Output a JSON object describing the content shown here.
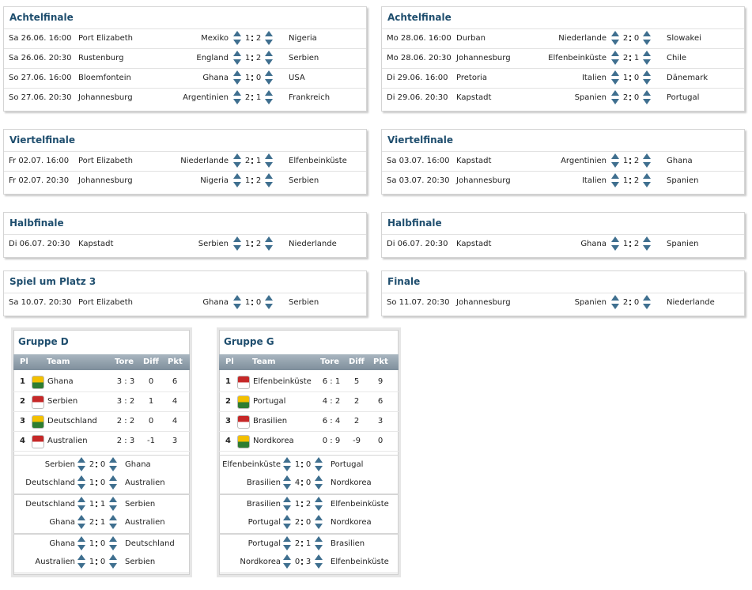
{
  "rounds": [
    {
      "title": "Achtelfinale",
      "matches": [
        {
          "date": "Sa 26.06. 16:00",
          "venue": "Port Elizabeth",
          "home": "Mexiko",
          "home_goals": 1,
          "away_goals": 2,
          "away": "Nigeria"
        },
        {
          "date": "Sa 26.06. 20:30",
          "venue": "Rustenburg",
          "home": "England",
          "home_goals": 1,
          "away_goals": 2,
          "away": "Serbien"
        },
        {
          "date": "So 27.06. 16:00",
          "venue": "Bloemfontein",
          "home": "Ghana",
          "home_goals": 1,
          "away_goals": 0,
          "away": "USA"
        },
        {
          "date": "So 27.06. 20:30",
          "venue": "Johannesburg",
          "home": "Argentinien",
          "home_goals": 2,
          "away_goals": 1,
          "away": "Frankreich"
        }
      ]
    },
    {
      "title": "Achtelfinale",
      "matches": [
        {
          "date": "Mo 28.06. 16:00",
          "venue": "Durban",
          "home": "Niederlande",
          "home_goals": 2,
          "away_goals": 0,
          "away": "Slowakei"
        },
        {
          "date": "Mo 28.06. 20:30",
          "venue": "Johannesburg",
          "home": "Elfenbeinküste",
          "home_goals": 2,
          "away_goals": 1,
          "away": "Chile"
        },
        {
          "date": "Di 29.06. 16:00",
          "venue": "Pretoria",
          "home": "Italien",
          "home_goals": 1,
          "away_goals": 0,
          "away": "Dänemark"
        },
        {
          "date": "Di 29.06. 20:30",
          "venue": "Kapstadt",
          "home": "Spanien",
          "home_goals": 2,
          "away_goals": 0,
          "away": "Portugal"
        }
      ]
    },
    {
      "title": "Viertelfinale",
      "matches": [
        {
          "date": "Fr 02.07. 16:00",
          "venue": "Port Elizabeth",
          "home": "Niederlande",
          "home_goals": 2,
          "away_goals": 1,
          "away": "Elfenbeinküste"
        },
        {
          "date": "Fr 02.07. 20:30",
          "venue": "Johannesburg",
          "home": "Nigeria",
          "home_goals": 1,
          "away_goals": 2,
          "away": "Serbien"
        }
      ]
    },
    {
      "title": "Viertelfinale",
      "matches": [
        {
          "date": "Sa 03.07. 16:00",
          "venue": "Kapstadt",
          "home": "Argentinien",
          "home_goals": 1,
          "away_goals": 2,
          "away": "Ghana"
        },
        {
          "date": "Sa 03.07. 20:30",
          "venue": "Johannesburg",
          "home": "Italien",
          "home_goals": 1,
          "away_goals": 2,
          "away": "Spanien"
        }
      ]
    },
    {
      "title": "Halbfinale",
      "matches": [
        {
          "date": "Di 06.07. 20:30",
          "venue": "Kapstadt",
          "home": "Serbien",
          "home_goals": 1,
          "away_goals": 2,
          "away": "Niederlande"
        }
      ]
    },
    {
      "title": "Halbfinale",
      "matches": [
        {
          "date": "Di 06.07. 20:30",
          "venue": "Kapstadt",
          "home": "Ghana",
          "home_goals": 1,
          "away_goals": 2,
          "away": "Spanien"
        }
      ]
    },
    {
      "title": "Spiel um Platz 3",
      "matches": [
        {
          "date": "Sa 10.07. 20:30",
          "venue": "Port Elizabeth",
          "home": "Ghana",
          "home_goals": 1,
          "away_goals": 0,
          "away": "Serbien"
        }
      ]
    },
    {
      "title": "Finale",
      "matches": [
        {
          "date": "So 11.07. 20:30",
          "venue": "Johannesburg",
          "home": "Spanien",
          "home_goals": 2,
          "away_goals": 0,
          "away": "Niederlande"
        }
      ]
    }
  ],
  "groups": [
    {
      "title": "Gruppe D",
      "headers": [
        "Pl",
        "Team",
        "Tore",
        "Diff",
        "Pkt"
      ],
      "rows": [
        {
          "pl": 1,
          "team": "Ghana",
          "tore": "3 : 3",
          "diff": 0,
          "pkt": 6
        },
        {
          "pl": 2,
          "team": "Serbien",
          "tore": "3 : 2",
          "diff": 1,
          "pkt": 4
        },
        {
          "pl": 3,
          "team": "Deutschland",
          "tore": "2 : 2",
          "diff": 0,
          "pkt": 4
        },
        {
          "pl": 4,
          "team": "Australien",
          "tore": "2 : 3",
          "diff": -1,
          "pkt": 3
        }
      ],
      "matches": [
        {
          "home": "Serbien",
          "home_goals": 2,
          "away_goals": 0,
          "away": "Ghana"
        },
        {
          "home": "Deutschland",
          "home_goals": 1,
          "away_goals": 0,
          "away": "Australien"
        },
        {
          "home": "Deutschland",
          "home_goals": 1,
          "away_goals": 1,
          "away": "Serbien"
        },
        {
          "home": "Ghana",
          "home_goals": 2,
          "away_goals": 1,
          "away": "Australien"
        },
        {
          "home": "Ghana",
          "home_goals": 1,
          "away_goals": 0,
          "away": "Deutschland"
        },
        {
          "home": "Australien",
          "home_goals": 1,
          "away_goals": 0,
          "away": "Serbien"
        }
      ]
    },
    {
      "title": "Gruppe G",
      "headers": [
        "Pl",
        "Team",
        "Tore",
        "Diff",
        "Pkt"
      ],
      "rows": [
        {
          "pl": 1,
          "team": "Elfenbeinküste",
          "tore": "6 : 1",
          "diff": 5,
          "pkt": 9
        },
        {
          "pl": 2,
          "team": "Portugal",
          "tore": "4 : 2",
          "diff": 2,
          "pkt": 6
        },
        {
          "pl": 3,
          "team": "Brasilien",
          "tore": "6 : 4",
          "diff": 2,
          "pkt": 3
        },
        {
          "pl": 4,
          "team": "Nordkorea",
          "tore": "0 : 9",
          "diff": -9,
          "pkt": 0
        }
      ],
      "matches": [
        {
          "home": "Elfenbeinküste",
          "home_goals": 1,
          "away_goals": 0,
          "away": "Portugal"
        },
        {
          "home": "Brasilien",
          "home_goals": 4,
          "away_goals": 0,
          "away": "Nordkorea"
        },
        {
          "home": "Brasilien",
          "home_goals": 1,
          "away_goals": 2,
          "away": "Elfenbeinküste"
        },
        {
          "home": "Portugal",
          "home_goals": 2,
          "away_goals": 0,
          "away": "Nordkorea"
        },
        {
          "home": "Portugal",
          "home_goals": 2,
          "away_goals": 1,
          "away": "Brasilien"
        },
        {
          "home": "Nordkorea",
          "home_goals": 0,
          "away_goals": 3,
          "away": "Elfenbeinküste"
        }
      ]
    }
  ]
}
